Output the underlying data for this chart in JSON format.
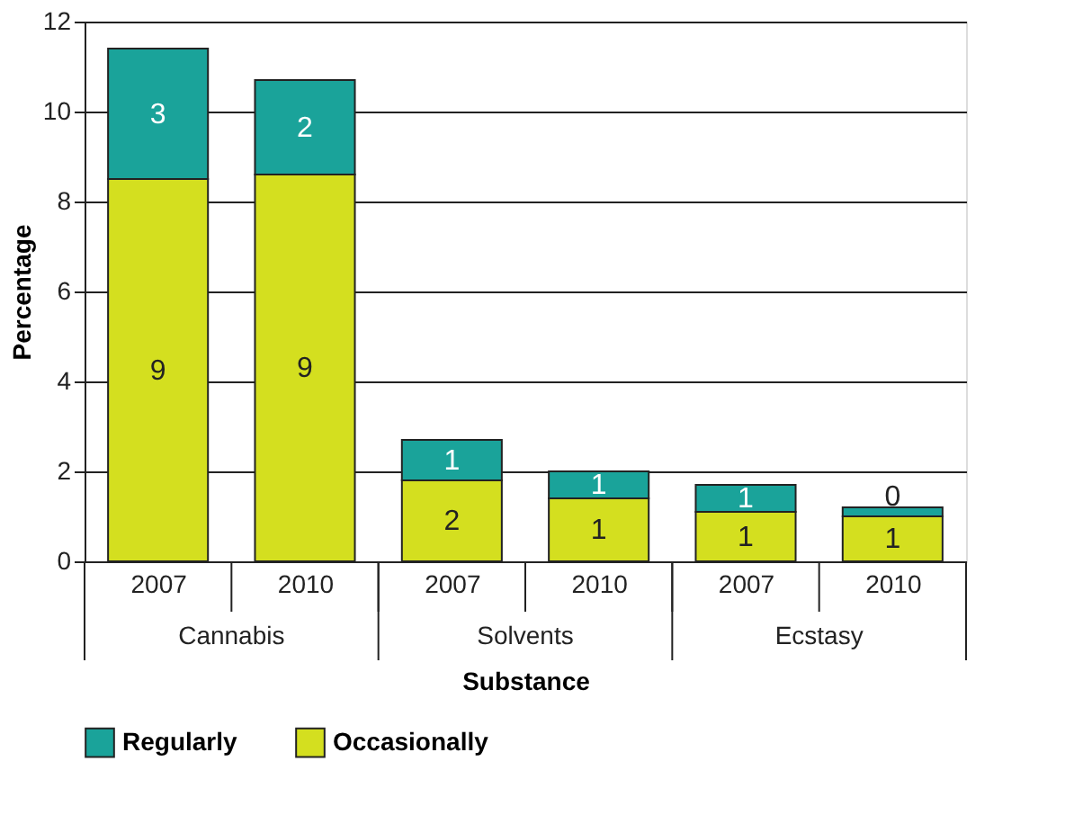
{
  "chart_data": {
    "type": "bar",
    "stacked": true,
    "xlabel": "Substance",
    "ylabel": "Percentage",
    "categories": [
      "2007",
      "2010",
      "2007",
      "2010",
      "2007",
      "2010"
    ],
    "annotations": [
      "Cannabis",
      "Solvents",
      "Ecstasy"
    ],
    "series": [
      {
        "name": "Occasionally",
        "color": "#d4df1f",
        "values": [
          8.5,
          8.6,
          1.8,
          1.4,
          1.1,
          1.0
        ],
        "value_labels": [
          "9",
          "9",
          "2",
          "1",
          "1",
          "1"
        ]
      },
      {
        "name": "Regularly",
        "color": "#1aa39a",
        "values": [
          2.9,
          2.1,
          0.9,
          0.6,
          0.6,
          0.2
        ],
        "value_labels": [
          "3",
          "2",
          "1",
          "1",
          "1",
          "0"
        ]
      }
    ],
    "ylim": [
      0,
      12
    ],
    "yticks": [
      0,
      2,
      4,
      6,
      8,
      10,
      12
    ],
    "grid": "y",
    "legend": "bottom left"
  }
}
